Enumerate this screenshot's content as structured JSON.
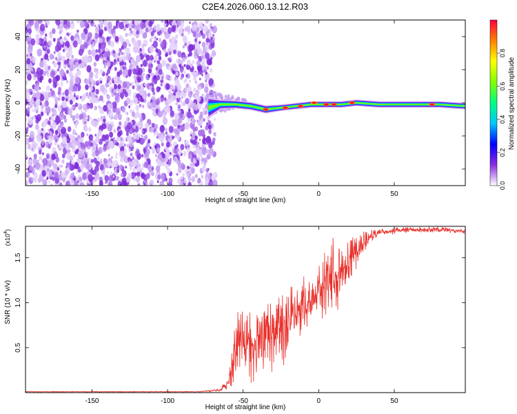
{
  "title": "C2E4.2026.060.13.12.R03",
  "colors": {
    "snr_line": "#e8302a",
    "axis": "#000000"
  },
  "chart_data": [
    {
      "type": "heatmap",
      "name": "spectrogram",
      "xlabel": "Height of straight line (km)",
      "ylabel": "Frequency (Hz)",
      "xlim": [
        -194,
        97
      ],
      "ylim": [
        -50,
        50
      ],
      "x_ticks": [
        -150,
        -100,
        -50,
        0,
        50
      ],
      "y_ticks": [
        -40,
        -20,
        0,
        20,
        40
      ],
      "noise_region_km": [
        -194,
        -72
      ],
      "transition_region_km": [
        -75,
        -48
      ],
      "signal_center_frequency_hz": 0,
      "signal_trace": [
        {
          "x": -73,
          "f": -3,
          "width": 14
        },
        {
          "x": -65,
          "f": -1,
          "width": 6
        },
        {
          "x": -55,
          "f": -1,
          "width": 5
        },
        {
          "x": -45,
          "f": -2,
          "width": 5
        },
        {
          "x": -35,
          "f": -4,
          "width": 5
        },
        {
          "x": -25,
          "f": -3,
          "width": 4
        },
        {
          "x": -15,
          "f": -2,
          "width": 4
        },
        {
          "x": -5,
          "f": -1,
          "width": 4
        },
        {
          "x": 5,
          "f": -1,
          "width": 4
        },
        {
          "x": 15,
          "f": -1,
          "width": 4
        },
        {
          "x": 25,
          "f": 0,
          "width": 4
        },
        {
          "x": 40,
          "f": -1,
          "width": 4
        },
        {
          "x": 60,
          "f": -1,
          "width": 4
        },
        {
          "x": 80,
          "f": -1,
          "width": 4
        },
        {
          "x": 97,
          "f": -2,
          "width": 4
        }
      ],
      "peaks": [
        {
          "x": -35,
          "f": -4
        },
        {
          "x": -22,
          "f": -3
        },
        {
          "x": -12,
          "f": -2
        },
        {
          "x": -3,
          "f": 0
        },
        {
          "x": 5,
          "f": -1
        },
        {
          "x": 10,
          "f": -1
        },
        {
          "x": 22,
          "f": 0
        },
        {
          "x": 75,
          "f": -1
        }
      ]
    },
    {
      "type": "colorbar",
      "name": "amplitude-colorbar",
      "label": "Normalized spectral amplitude",
      "range": [
        0,
        1
      ],
      "ticks": [
        "0.0",
        "0.2",
        "0.4",
        "0.6",
        "0.8"
      ],
      "tick_values": [
        0.0,
        0.2,
        0.4,
        0.6,
        0.8
      ],
      "stops": [
        "#ffffff",
        "#8a2be2",
        "#0000ff",
        "#00c8ff",
        "#00ff80",
        "#80ff00",
        "#ffff00",
        "#ff8000",
        "#ff0040"
      ]
    },
    {
      "type": "line",
      "name": "snr",
      "xlabel": "Height of straight line (km)",
      "ylabel": "SNR (10 * v/v)",
      "multiplier_base": "(x10",
      "multiplier_exp": "4",
      "multiplier_close": ")",
      "xlim": [
        -194,
        97
      ],
      "ylim": [
        0,
        1.85
      ],
      "x_ticks": [
        -150,
        -100,
        -50,
        0,
        50
      ],
      "y_ticks": [
        "0.5",
        "1.0",
        "1.5"
      ],
      "y_tick_values": [
        0.5,
        1.0,
        1.5
      ],
      "envelope": [
        {
          "x": -194,
          "lo": 0.005,
          "hi": 0.015
        },
        {
          "x": -80,
          "lo": 0.005,
          "hi": 0.015
        },
        {
          "x": -65,
          "lo": 0.01,
          "hi": 0.05
        },
        {
          "x": -60,
          "lo": 0.02,
          "hi": 0.2
        },
        {
          "x": -56,
          "lo": 0.05,
          "hi": 0.7
        },
        {
          "x": -53,
          "lo": 0.08,
          "hi": 1.15
        },
        {
          "x": -45,
          "lo": 0.1,
          "hi": 0.9
        },
        {
          "x": -38,
          "lo": 0.08,
          "hi": 1.25
        },
        {
          "x": -30,
          "lo": 0.15,
          "hi": 1.05
        },
        {
          "x": -20,
          "lo": 0.3,
          "hi": 1.2
        },
        {
          "x": -15,
          "lo": 0.55,
          "hi": 1.25
        },
        {
          "x": -5,
          "lo": 0.65,
          "hi": 1.35
        },
        {
          "x": 0,
          "lo": 0.75,
          "hi": 1.4
        },
        {
          "x": 5,
          "lo": 0.8,
          "hi": 1.75
        },
        {
          "x": 10,
          "lo": 0.75,
          "hi": 1.78
        },
        {
          "x": 18,
          "lo": 1.05,
          "hi": 1.78
        },
        {
          "x": 25,
          "lo": 1.3,
          "hi": 1.8
        },
        {
          "x": 32,
          "lo": 1.6,
          "hi": 1.82
        },
        {
          "x": 40,
          "lo": 1.73,
          "hi": 1.83
        },
        {
          "x": 60,
          "lo": 1.78,
          "hi": 1.85
        },
        {
          "x": 80,
          "lo": 1.78,
          "hi": 1.85
        },
        {
          "x": 97,
          "lo": 1.76,
          "hi": 1.82
        }
      ]
    }
  ]
}
